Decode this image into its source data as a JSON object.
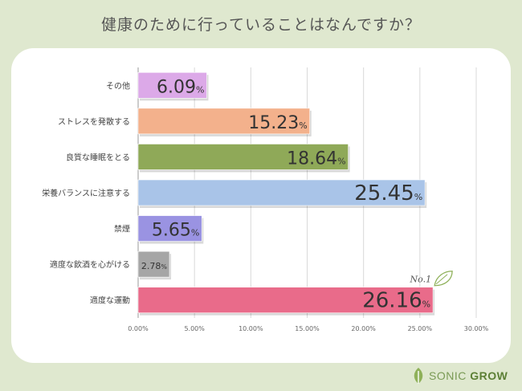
{
  "title": "健康のために行っていることはなんですか？",
  "chart_data": {
    "type": "bar",
    "orientation": "horizontal",
    "categories": [
      "その他",
      "ストレスを発散する",
      "良質な睡眠をとる",
      "栄養バランスに注意する",
      "禁煙",
      "適度な飲酒を心がける",
      "適度な運動"
    ],
    "values": [
      6.09,
      15.23,
      18.64,
      25.45,
      5.65,
      2.78,
      26.16
    ],
    "value_labels": [
      "6.09%",
      "15.23%",
      "18.64%",
      "25.45%",
      "5.65%",
      "2.78%",
      "26.16%"
    ],
    "colors": [
      "#dca9e8",
      "#f3b18c",
      "#8fa958",
      "#a9c4e8",
      "#9a93e2",
      "#a6a6a6",
      "#e96b8a"
    ],
    "xlim": [
      0,
      30
    ],
    "x_ticks": [
      "0.00%",
      "5.00%",
      "10.00%",
      "15.00%",
      "20.00%",
      "25.00%",
      "30.00%"
    ],
    "grid": true,
    "annotation": "No.1"
  },
  "brand": {
    "name_light": "SONIC ",
    "name_bold": "GROW",
    "icon": "leaf-icon"
  }
}
